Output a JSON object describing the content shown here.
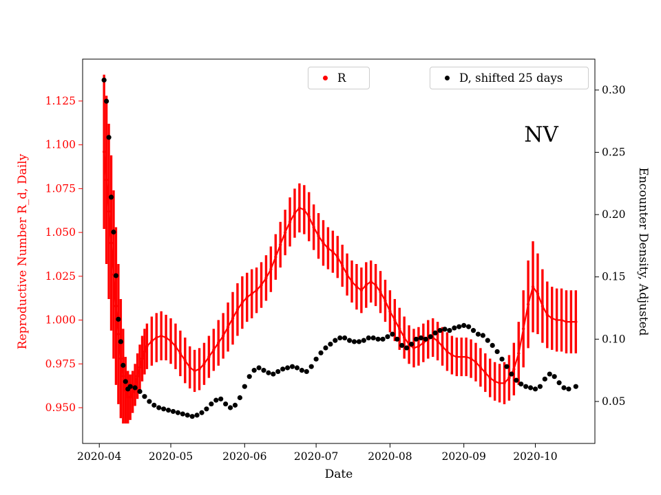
{
  "chart_data": {
    "type": "line",
    "title": "",
    "annotation": "NV",
    "xlabel": "Date",
    "grid": false,
    "legend_position": "top",
    "x_range": [
      "2020-03-25",
      "2020-10-26"
    ],
    "x_ticks": [
      "2020-04",
      "2020-05",
      "2020-06",
      "2020-07",
      "2020-08",
      "2020-09",
      "2020-10"
    ],
    "y_left": {
      "label": "Reproductive Number R_d, Daily",
      "color": "#ff0000",
      "range": [
        0.9296,
        1.1489
      ],
      "ticks": [
        "0.950",
        "0.975",
        "1.000",
        "1.025",
        "1.050",
        "1.075",
        "1.100",
        "1.125"
      ]
    },
    "y_right": {
      "label": "Encounter Density, Adjusted",
      "color": "#000000",
      "range": [
        0.0163,
        0.3248
      ],
      "ticks": [
        "0.05",
        "0.10",
        "0.15",
        "0.20",
        "0.25",
        "0.30"
      ]
    },
    "series": [
      {
        "name": "R",
        "type": "errorbar-line",
        "axis": "left",
        "color": "#ff0000",
        "points_format": [
          "date",
          "value",
          "error_halfwidth"
        ],
        "points": [
          [
            "2020-04-03",
            1.096,
            0.044
          ],
          [
            "2020-04-04",
            1.08,
            0.048
          ],
          [
            "2020-04-05",
            1.062,
            0.05
          ],
          [
            "2020-04-06",
            1.044,
            0.05
          ],
          [
            "2020-04-07",
            1.026,
            0.048
          ],
          [
            "2020-04-08",
            1.008,
            0.045
          ],
          [
            "2020-04-09",
            0.992,
            0.04
          ],
          [
            "2020-04-10",
            0.978,
            0.034
          ],
          [
            "2020-04-11",
            0.968,
            0.027
          ],
          [
            "2020-04-12",
            0.96,
            0.019
          ],
          [
            "2020-04-13",
            0.956,
            0.015
          ],
          [
            "2020-04-14",
            0.956,
            0.013
          ],
          [
            "2020-04-15",
            0.959,
            0.012
          ],
          [
            "2020-04-16",
            0.963,
            0.012
          ],
          [
            "2020-04-17",
            0.968,
            0.013
          ],
          [
            "2020-04-18",
            0.973,
            0.013
          ],
          [
            "2020-04-19",
            0.978,
            0.013
          ],
          [
            "2020-04-20",
            0.982,
            0.013
          ],
          [
            "2020-04-21",
            0.985,
            0.013
          ],
          [
            "2020-04-23",
            0.988,
            0.014
          ],
          [
            "2020-04-25",
            0.99,
            0.014
          ],
          [
            "2020-04-27",
            0.991,
            0.014
          ],
          [
            "2020-04-29",
            0.99,
            0.013
          ],
          [
            "2020-05-01",
            0.988,
            0.013
          ],
          [
            "2020-05-03",
            0.985,
            0.013
          ],
          [
            "2020-05-05",
            0.981,
            0.013
          ],
          [
            "2020-05-07",
            0.977,
            0.013
          ],
          [
            "2020-05-09",
            0.973,
            0.012
          ],
          [
            "2020-05-11",
            0.971,
            0.012
          ],
          [
            "2020-05-13",
            0.972,
            0.012
          ],
          [
            "2020-05-15",
            0.975,
            0.012
          ],
          [
            "2020-05-17",
            0.979,
            0.012
          ],
          [
            "2020-05-19",
            0.983,
            0.012
          ],
          [
            "2020-05-21",
            0.987,
            0.013
          ],
          [
            "2020-05-23",
            0.991,
            0.013
          ],
          [
            "2020-05-25",
            0.996,
            0.014
          ],
          [
            "2020-05-27",
            1.001,
            0.015
          ],
          [
            "2020-05-29",
            1.006,
            0.015
          ],
          [
            "2020-05-31",
            1.01,
            0.015
          ],
          [
            "2020-06-02",
            1.013,
            0.014
          ],
          [
            "2020-06-04",
            1.015,
            0.014
          ],
          [
            "2020-06-06",
            1.017,
            0.013
          ],
          [
            "2020-06-08",
            1.02,
            0.013
          ],
          [
            "2020-06-10",
            1.024,
            0.013
          ],
          [
            "2020-06-12",
            1.029,
            0.013
          ],
          [
            "2020-06-14",
            1.036,
            0.013
          ],
          [
            "2020-06-16",
            1.043,
            0.013
          ],
          [
            "2020-06-18",
            1.05,
            0.013
          ],
          [
            "2020-06-20",
            1.056,
            0.014
          ],
          [
            "2020-06-22",
            1.061,
            0.014
          ],
          [
            "2020-06-24",
            1.064,
            0.014
          ],
          [
            "2020-06-26",
            1.063,
            0.014
          ],
          [
            "2020-06-28",
            1.059,
            0.014
          ],
          [
            "2020-06-30",
            1.053,
            0.013
          ],
          [
            "2020-07-02",
            1.048,
            0.013
          ],
          [
            "2020-07-04",
            1.044,
            0.013
          ],
          [
            "2020-07-06",
            1.041,
            0.012
          ],
          [
            "2020-07-08",
            1.039,
            0.012
          ],
          [
            "2020-07-10",
            1.036,
            0.012
          ],
          [
            "2020-07-12",
            1.031,
            0.012
          ],
          [
            "2020-07-14",
            1.026,
            0.012
          ],
          [
            "2020-07-16",
            1.022,
            0.012
          ],
          [
            "2020-07-18",
            1.019,
            0.013
          ],
          [
            "2020-07-20",
            1.017,
            0.013
          ],
          [
            "2020-07-22",
            1.02,
            0.013
          ],
          [
            "2020-07-24",
            1.022,
            0.012
          ],
          [
            "2020-07-26",
            1.02,
            0.012
          ],
          [
            "2020-07-28",
            1.016,
            0.012
          ],
          [
            "2020-07-30",
            1.011,
            0.012
          ],
          [
            "2020-08-01",
            1.005,
            0.012
          ],
          [
            "2020-08-03",
            1.0,
            0.012
          ],
          [
            "2020-08-05",
            0.995,
            0.012
          ],
          [
            "2020-08-07",
            0.99,
            0.012
          ],
          [
            "2020-08-09",
            0.986,
            0.011
          ],
          [
            "2020-08-11",
            0.984,
            0.011
          ],
          [
            "2020-08-13",
            0.985,
            0.011
          ],
          [
            "2020-08-15",
            0.987,
            0.011
          ],
          [
            "2020-08-17",
            0.989,
            0.011
          ],
          [
            "2020-08-19",
            0.99,
            0.011
          ],
          [
            "2020-08-21",
            0.988,
            0.011
          ],
          [
            "2020-08-23",
            0.985,
            0.011
          ],
          [
            "2020-08-25",
            0.982,
            0.011
          ],
          [
            "2020-08-27",
            0.98,
            0.011
          ],
          [
            "2020-08-29",
            0.979,
            0.011
          ],
          [
            "2020-08-31",
            0.979,
            0.011
          ],
          [
            "2020-09-02",
            0.979,
            0.011
          ],
          [
            "2020-09-04",
            0.978,
            0.011
          ],
          [
            "2020-09-06",
            0.976,
            0.011
          ],
          [
            "2020-09-08",
            0.973,
            0.011
          ],
          [
            "2020-09-10",
            0.97,
            0.011
          ],
          [
            "2020-09-12",
            0.967,
            0.011
          ],
          [
            "2020-09-14",
            0.965,
            0.011
          ],
          [
            "2020-09-16",
            0.964,
            0.011
          ],
          [
            "2020-09-18",
            0.964,
            0.012
          ],
          [
            "2020-09-20",
            0.967,
            0.013
          ],
          [
            "2020-09-22",
            0.972,
            0.015
          ],
          [
            "2020-09-24",
            0.981,
            0.018
          ],
          [
            "2020-09-26",
            0.995,
            0.022
          ],
          [
            "2020-09-28",
            1.009,
            0.025
          ],
          [
            "2020-09-30",
            1.019,
            0.026
          ],
          [
            "2020-10-02",
            1.015,
            0.023
          ],
          [
            "2020-10-04",
            1.008,
            0.021
          ],
          [
            "2020-10-06",
            1.003,
            0.019
          ],
          [
            "2020-10-08",
            1.001,
            0.018
          ],
          [
            "2020-10-10",
            1.0,
            0.018
          ],
          [
            "2020-10-12",
            1.0,
            0.018
          ],
          [
            "2020-10-14",
            0.999,
            0.018
          ],
          [
            "2020-10-16",
            0.999,
            0.018
          ],
          [
            "2020-10-18",
            0.999,
            0.018
          ]
        ]
      },
      {
        "name": "D, shifted 25 days",
        "type": "scatter",
        "axis": "right",
        "color": "#000000",
        "points_format": [
          "date",
          "value"
        ],
        "points": [
          [
            "2020-04-03",
            0.308
          ],
          [
            "2020-04-04",
            0.291
          ],
          [
            "2020-04-05",
            0.262
          ],
          [
            "2020-04-06",
            0.214
          ],
          [
            "2020-04-07",
            0.186
          ],
          [
            "2020-04-08",
            0.151
          ],
          [
            "2020-04-09",
            0.116
          ],
          [
            "2020-04-10",
            0.098
          ],
          [
            "2020-04-11",
            0.079
          ],
          [
            "2020-04-12",
            0.066
          ],
          [
            "2020-04-13",
            0.06
          ],
          [
            "2020-04-14",
            0.062
          ],
          [
            "2020-04-16",
            0.061
          ],
          [
            "2020-04-18",
            0.058
          ],
          [
            "2020-04-20",
            0.054
          ],
          [
            "2020-04-22",
            0.05
          ],
          [
            "2020-04-24",
            0.047
          ],
          [
            "2020-04-26",
            0.045
          ],
          [
            "2020-04-28",
            0.044
          ],
          [
            "2020-04-30",
            0.043
          ],
          [
            "2020-05-02",
            0.042
          ],
          [
            "2020-05-04",
            0.041
          ],
          [
            "2020-05-06",
            0.04
          ],
          [
            "2020-05-08",
            0.039
          ],
          [
            "2020-05-10",
            0.038
          ],
          [
            "2020-05-12",
            0.039
          ],
          [
            "2020-05-14",
            0.041
          ],
          [
            "2020-05-16",
            0.044
          ],
          [
            "2020-05-18",
            0.048
          ],
          [
            "2020-05-20",
            0.051
          ],
          [
            "2020-05-22",
            0.052
          ],
          [
            "2020-05-24",
            0.048
          ],
          [
            "2020-05-26",
            0.045
          ],
          [
            "2020-05-28",
            0.047
          ],
          [
            "2020-05-30",
            0.053
          ],
          [
            "2020-06-01",
            0.062
          ],
          [
            "2020-06-03",
            0.07
          ],
          [
            "2020-06-05",
            0.075
          ],
          [
            "2020-06-07",
            0.077
          ],
          [
            "2020-06-09",
            0.075
          ],
          [
            "2020-06-11",
            0.073
          ],
          [
            "2020-06-13",
            0.072
          ],
          [
            "2020-06-15",
            0.074
          ],
          [
            "2020-06-17",
            0.076
          ],
          [
            "2020-06-19",
            0.077
          ],
          [
            "2020-06-21",
            0.078
          ],
          [
            "2020-06-23",
            0.077
          ],
          [
            "2020-06-25",
            0.075
          ],
          [
            "2020-06-27",
            0.074
          ],
          [
            "2020-06-29",
            0.078
          ],
          [
            "2020-07-01",
            0.084
          ],
          [
            "2020-07-03",
            0.089
          ],
          [
            "2020-07-05",
            0.093
          ],
          [
            "2020-07-07",
            0.096
          ],
          [
            "2020-07-09",
            0.099
          ],
          [
            "2020-07-11",
            0.101
          ],
          [
            "2020-07-13",
            0.101
          ],
          [
            "2020-07-15",
            0.099
          ],
          [
            "2020-07-17",
            0.098
          ],
          [
            "2020-07-19",
            0.098
          ],
          [
            "2020-07-21",
            0.099
          ],
          [
            "2020-07-23",
            0.101
          ],
          [
            "2020-07-25",
            0.101
          ],
          [
            "2020-07-27",
            0.1
          ],
          [
            "2020-07-29",
            0.1
          ],
          [
            "2020-07-31",
            0.102
          ],
          [
            "2020-08-02",
            0.104
          ],
          [
            "2020-08-04",
            0.1
          ],
          [
            "2020-08-06",
            0.095
          ],
          [
            "2020-08-08",
            0.093
          ],
          [
            "2020-08-10",
            0.096
          ],
          [
            "2020-08-12",
            0.1
          ],
          [
            "2020-08-14",
            0.101
          ],
          [
            "2020-08-16",
            0.1
          ],
          [
            "2020-08-18",
            0.102
          ],
          [
            "2020-08-20",
            0.105
          ],
          [
            "2020-08-22",
            0.107
          ],
          [
            "2020-08-24",
            0.108
          ],
          [
            "2020-08-26",
            0.107
          ],
          [
            "2020-08-28",
            0.109
          ],
          [
            "2020-08-30",
            0.11
          ],
          [
            "2020-09-01",
            0.111
          ],
          [
            "2020-09-03",
            0.11
          ],
          [
            "2020-09-05",
            0.107
          ],
          [
            "2020-09-07",
            0.104
          ],
          [
            "2020-09-09",
            0.103
          ],
          [
            "2020-09-11",
            0.099
          ],
          [
            "2020-09-13",
            0.095
          ],
          [
            "2020-09-15",
            0.09
          ],
          [
            "2020-09-17",
            0.084
          ],
          [
            "2020-09-19",
            0.078
          ],
          [
            "2020-09-21",
            0.072
          ],
          [
            "2020-09-23",
            0.067
          ],
          [
            "2020-09-25",
            0.064
          ],
          [
            "2020-09-27",
            0.062
          ],
          [
            "2020-09-29",
            0.061
          ],
          [
            "2020-10-01",
            0.06
          ],
          [
            "2020-10-03",
            0.062
          ],
          [
            "2020-10-05",
            0.068
          ],
          [
            "2020-10-07",
            0.072
          ],
          [
            "2020-10-09",
            0.07
          ],
          [
            "2020-10-11",
            0.065
          ],
          [
            "2020-10-13",
            0.061
          ],
          [
            "2020-10-15",
            0.06
          ],
          [
            "2020-10-18",
            0.062
          ]
        ]
      }
    ]
  },
  "legend": {
    "r_label": "R",
    "d_label": "D, shifted 25 days"
  },
  "colors": {
    "r_series": "#ff0000",
    "d_series": "#000000",
    "legend_border": "#cccccc",
    "axes": "#000000"
  }
}
